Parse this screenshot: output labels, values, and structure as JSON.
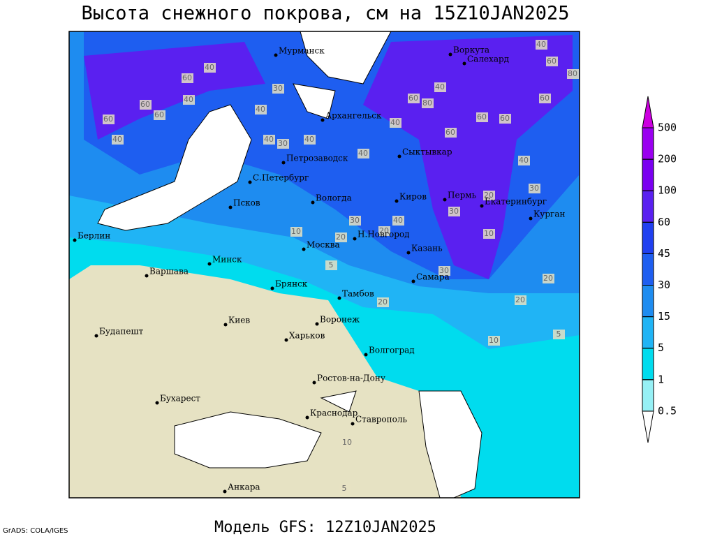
{
  "title": "Высота снежного покрова, см на 15Z10JAN2025",
  "subtitle": "Модель GFS: 12Z10JAN2025",
  "credit": "GrADS: COLA/IGES",
  "colorbar": {
    "levels": [
      0.5,
      1,
      5,
      15,
      30,
      45,
      60,
      100,
      200,
      500
    ],
    "colors": [
      "#ffffff",
      "#96f0f5",
      "#00dcee",
      "#20b4f5",
      "#1e8cf0",
      "#1e5ef0",
      "#2040f0",
      "#5a20f0",
      "#7a00f0",
      "#9a00f0",
      "#cc00e0"
    ]
  },
  "cities": [
    "Мурманск",
    "Воркута",
    "Салехард",
    "Архангельск",
    "Сыктывкар",
    "Петрозаводск",
    "С.Петербург",
    "Вологда",
    "Киров",
    "Пермь",
    "Екатеринбург",
    "Курган",
    "Псков",
    "Н.Новгород",
    "Берлин",
    "Москва",
    "Казань",
    "Минск",
    "Варшава",
    "Самара",
    "Брянск",
    "Тамбов",
    "Киев",
    "Воронеж",
    "Будапешт",
    "Харьков",
    "Волгоград",
    "Ростов-на-Дону",
    "Бухарест",
    "Краснодар",
    "Ставрополь",
    "Анкара"
  ],
  "contour_labels": [
    40,
    60,
    40,
    60,
    60,
    40,
    60,
    40,
    30,
    40,
    40,
    30,
    40,
    60,
    60,
    60,
    40,
    60,
    80,
    40,
    80,
    60,
    60,
    40,
    30,
    40,
    20,
    30,
    30,
    20,
    10,
    20,
    40,
    30,
    20,
    20,
    20,
    10,
    5,
    5,
    10,
    10,
    5
  ]
}
